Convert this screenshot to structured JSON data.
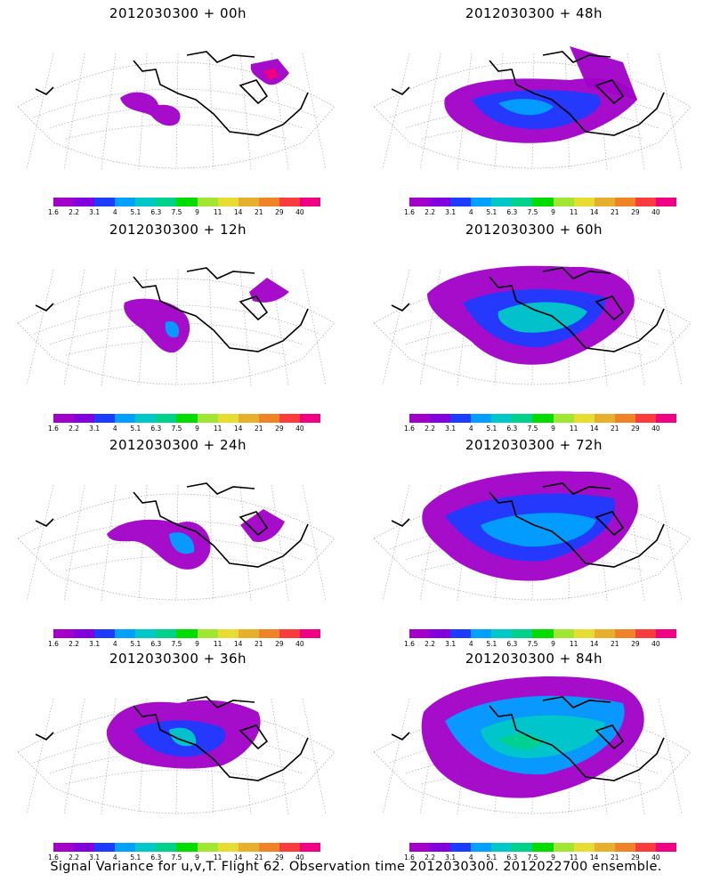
{
  "panels": [
    {
      "title": "2012030300 + 00h",
      "level": 0
    },
    {
      "title": "2012030300 + 48h",
      "level": 4
    },
    {
      "title": "2012030300 + 12h",
      "level": 1
    },
    {
      "title": "2012030300 + 60h",
      "level": 5
    },
    {
      "title": "2012030300 + 24h",
      "level": 2
    },
    {
      "title": "2012030300 + 72h",
      "level": 6
    },
    {
      "title": "2012030300 + 36h",
      "level": 3
    },
    {
      "title": "2012030300 + 84h",
      "level": 7
    }
  ],
  "colorbar": {
    "colors": [
      "#a000c8",
      "#8200dc",
      "#1e3cff",
      "#00a0ff",
      "#00c8c8",
      "#00d28c",
      "#00dc00",
      "#a0e632",
      "#e6dc32",
      "#e6af2d",
      "#f08228",
      "#fa3c3c",
      "#f00082"
    ],
    "labels": [
      "1.6",
      "2.2",
      "3.1",
      "4",
      "5.1",
      "6.3",
      "7.5",
      "9",
      "11",
      "14",
      "21",
      "29",
      "40"
    ]
  },
  "footer": "Signal Variance for u,v,T. Flight 62. Observation time 2012030300. 2012022700 ensemble."
}
